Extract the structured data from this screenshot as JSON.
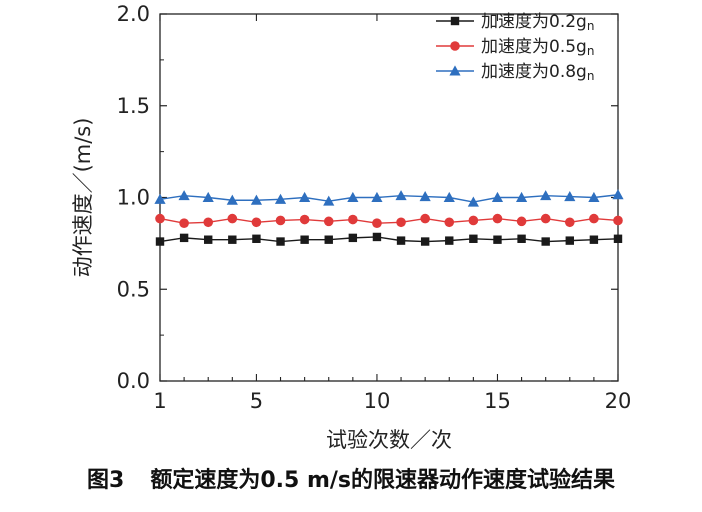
{
  "chart_data": {
    "type": "line",
    "xlabel": "试验次数／次",
    "ylabel": "动作速度／(m/s)",
    "xlim": [
      1,
      20
    ],
    "ylim": [
      0.0,
      2.0
    ],
    "x_ticks": [
      1,
      5,
      10,
      15,
      20
    ],
    "y_ticks": [
      "0.0",
      "0.5",
      "1.0",
      "1.5",
      "2.0"
    ],
    "legend_position": "top-right",
    "x": [
      1,
      2,
      3,
      4,
      5,
      6,
      7,
      8,
      9,
      10,
      11,
      12,
      13,
      14,
      15,
      16,
      17,
      18,
      19,
      20
    ],
    "series": [
      {
        "name": "加速度为0.2g",
        "name_sub": "n",
        "color": "#1a1a1a",
        "marker": "square",
        "values": [
          0.76,
          0.78,
          0.77,
          0.77,
          0.775,
          0.76,
          0.77,
          0.77,
          0.78,
          0.785,
          0.765,
          0.76,
          0.765,
          0.775,
          0.77,
          0.775,
          0.76,
          0.765,
          0.77,
          0.775
        ]
      },
      {
        "name": "加速度为0.5g",
        "name_sub": "n",
        "color": "#e03a3a",
        "marker": "circle",
        "values": [
          0.885,
          0.86,
          0.865,
          0.885,
          0.865,
          0.875,
          0.88,
          0.87,
          0.88,
          0.86,
          0.865,
          0.885,
          0.865,
          0.875,
          0.885,
          0.87,
          0.885,
          0.865,
          0.885,
          0.875
        ]
      },
      {
        "name": "加速度为0.8g",
        "name_sub": "n",
        "color": "#2e6fbf",
        "marker": "triangle",
        "values": [
          0.99,
          1.01,
          1.0,
          0.985,
          0.985,
          0.99,
          1.0,
          0.98,
          1.0,
          1.0,
          1.01,
          1.005,
          1.0,
          0.975,
          1.0,
          1.0,
          1.01,
          1.005,
          1.0,
          1.015
        ]
      }
    ]
  },
  "caption": {
    "figure": "图3",
    "text": "额定速度为0.5 m/s的限速器动作速度试验结果"
  }
}
